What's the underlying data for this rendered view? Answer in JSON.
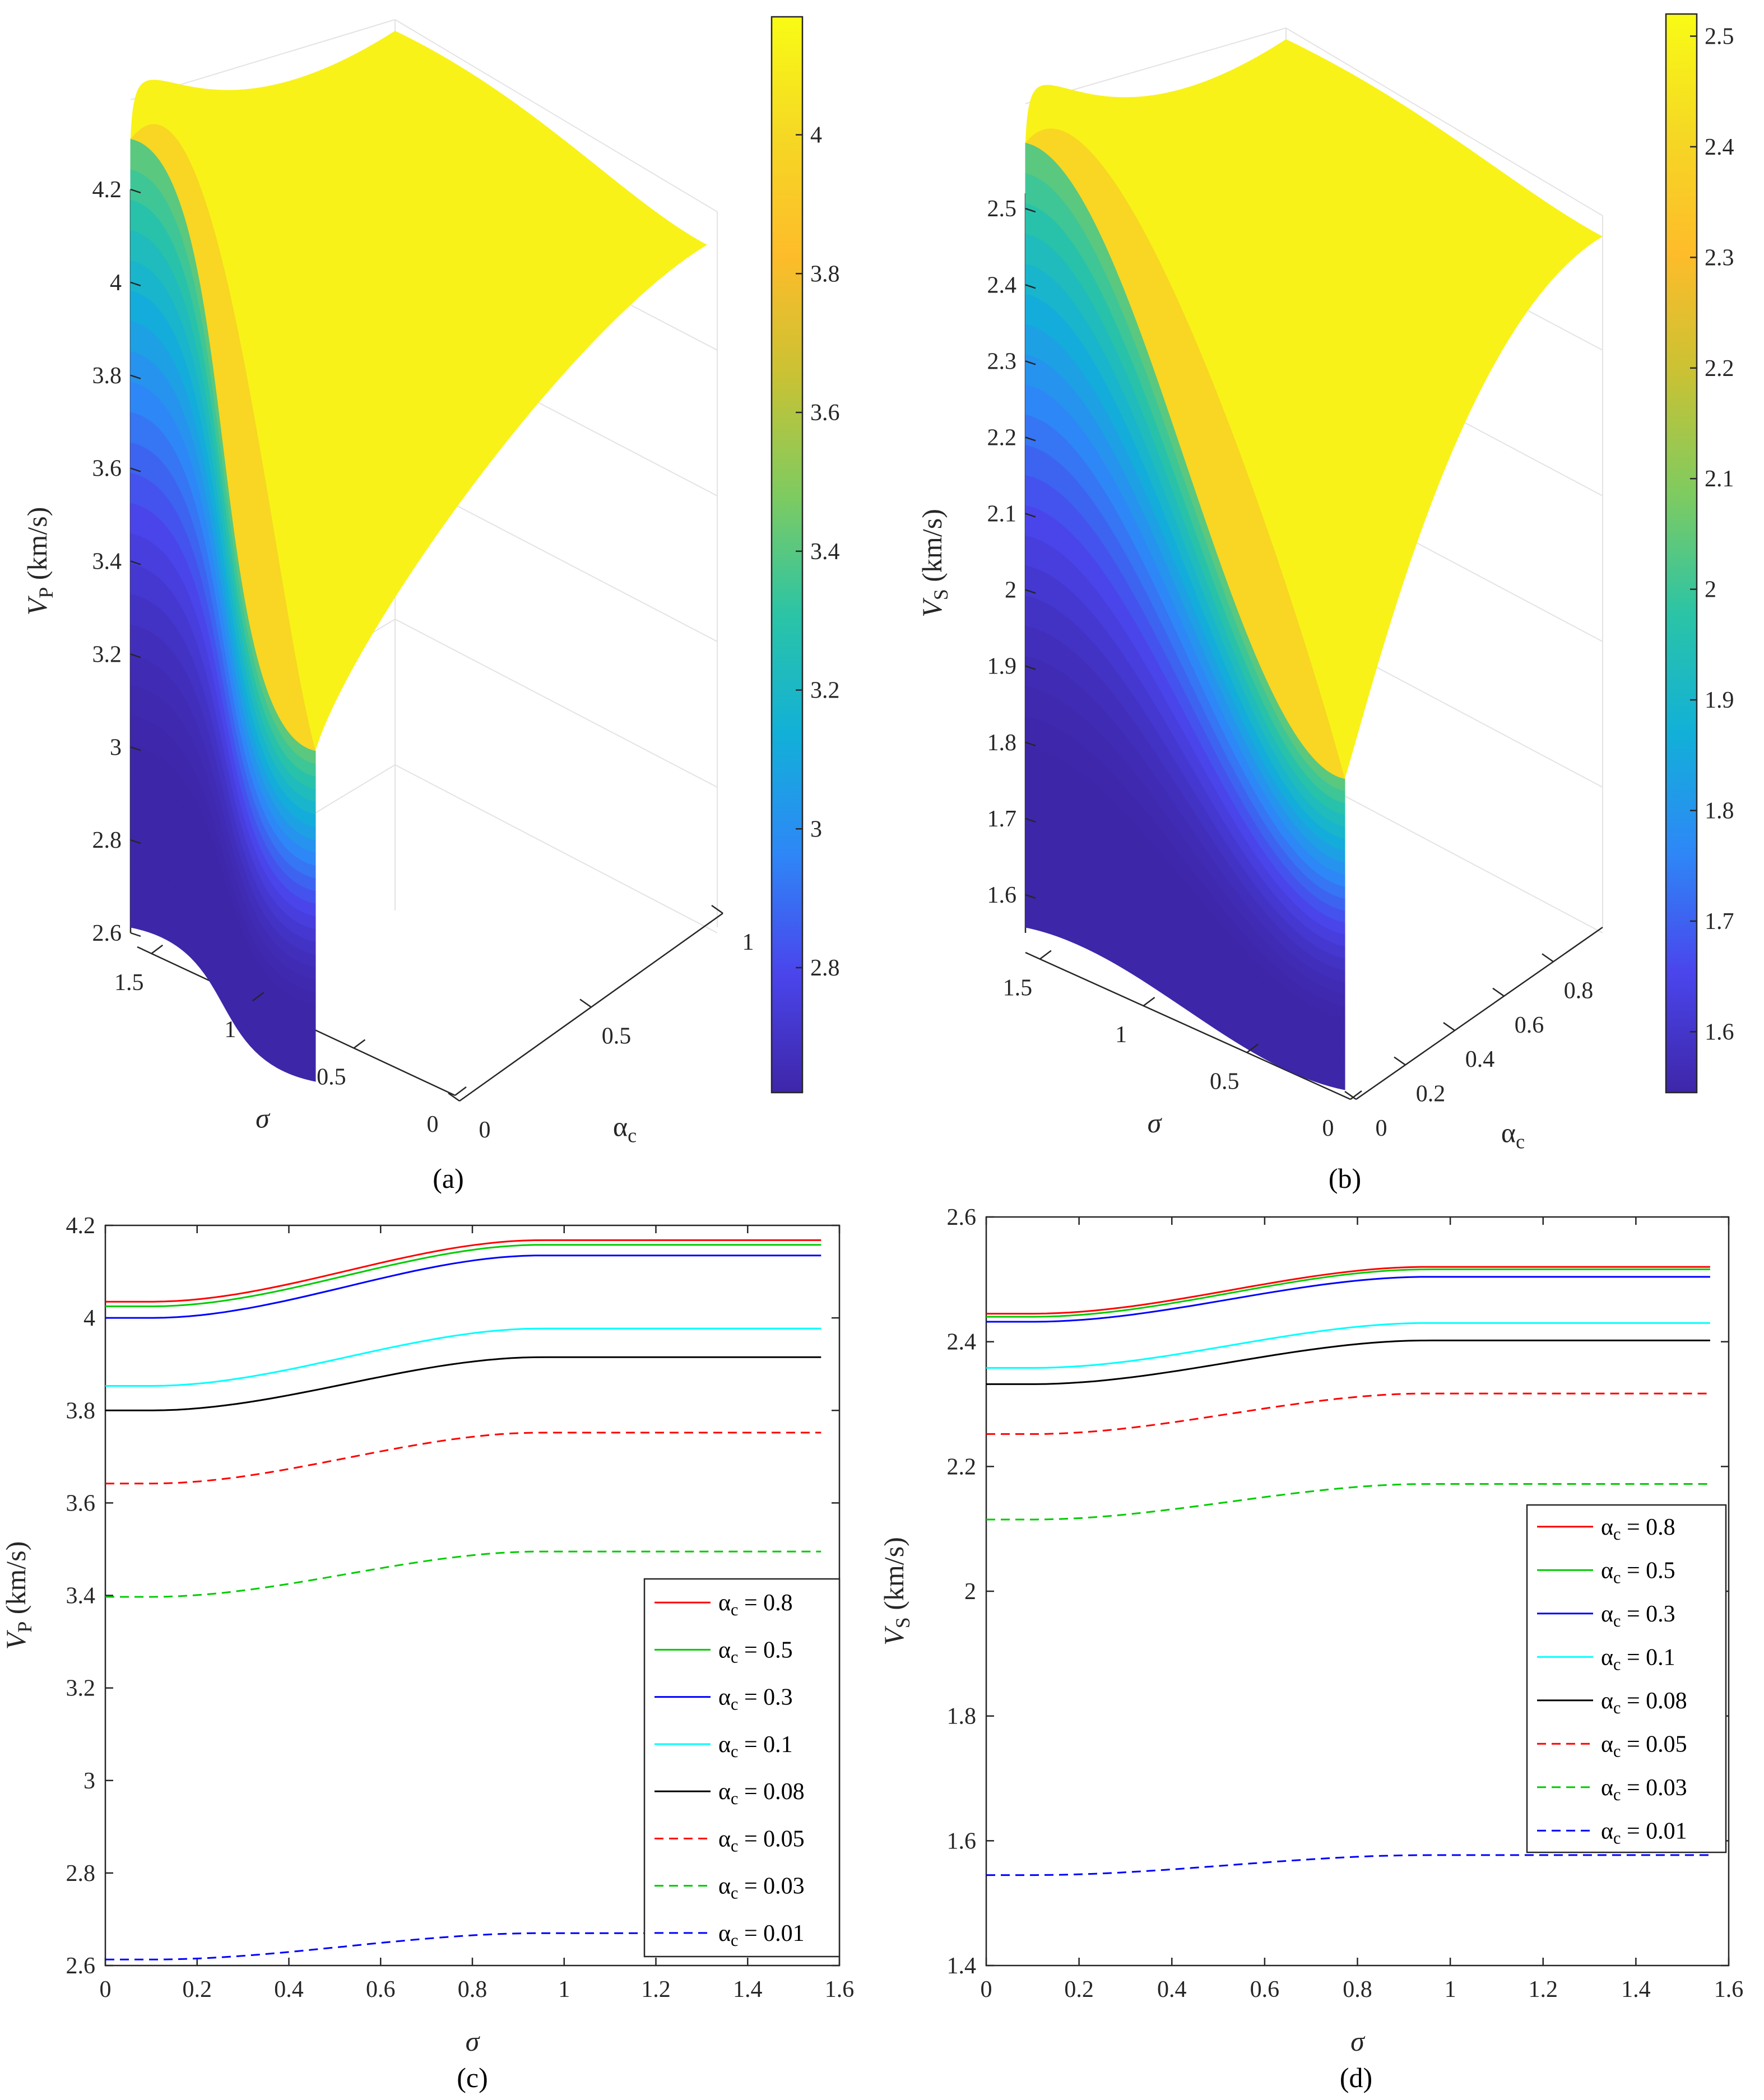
{
  "colormap": [
    "#3e26a8",
    "#4a45ec",
    "#2e87f7",
    "#12b0d8",
    "#2bc4a6",
    "#7fcb60",
    "#c9c234",
    "#febc2a",
    "#f5d824",
    "#f9fb15"
  ],
  "chart_data": [
    {
      "id": "a",
      "type": "surface",
      "caption": "(a)",
      "zlabel_base": "V",
      "zlabel_sub": "P",
      "zlabel_unit": " (km/s)",
      "xlabel": "σ",
      "ylabel_base": "α",
      "ylabel_sub": "c",
      "zlim": [
        2.6,
        4.2
      ],
      "zticks": [
        "2.6",
        "2.8",
        "3",
        "3.2",
        "3.4",
        "3.6",
        "3.8",
        "4",
        "4.2"
      ],
      "sigma_ticks": [
        "0",
        "0.5",
        "1",
        "1.5"
      ],
      "alpha_ticks": [
        "0",
        "0.5",
        "1"
      ],
      "colorbar": {
        "range": [
          2.62,
          4.17
        ],
        "ticks": [
          "2.8",
          "3",
          "3.2",
          "3.4",
          "3.6",
          "3.8",
          "4"
        ]
      },
      "corners": {
        "sigma0_alpha0": 2.61,
        "sigma1.57_alpha0": 2.67,
        "sigma0_alpha1": 4.04,
        "sigma1.57_alpha1": 4.17
      }
    },
    {
      "id": "b",
      "type": "surface",
      "caption": "(b)",
      "zlabel_base": "V",
      "zlabel_sub": "S",
      "zlabel_unit": " (km/s)",
      "xlabel": "σ",
      "ylabel_base": "α",
      "ylabel_sub": "c",
      "zlim": [
        1.55,
        2.52
      ],
      "zticks": [
        "1.6",
        "1.7",
        "1.8",
        "1.9",
        "2",
        "2.1",
        "2.2",
        "2.3",
        "2.4",
        "2.5"
      ],
      "sigma_ticks": [
        "0",
        "0.5",
        "1",
        "1.5"
      ],
      "alpha_ticks": [
        "0",
        "0.2",
        "0.4",
        "0.6",
        "0.8"
      ],
      "colorbar": {
        "range": [
          1.545,
          2.52
        ],
        "ticks": [
          "1.6",
          "1.7",
          "1.8",
          "1.9",
          "2",
          "2.1",
          "2.2",
          "2.3",
          "2.4",
          "2.5"
        ]
      },
      "corners": {
        "sigma0_alpha0": 1.545,
        "sigma1.57_alpha0": 1.575,
        "sigma0_alpha1": 2.445,
        "sigma1.57_alpha1": 2.52
      }
    },
    {
      "id": "c",
      "type": "line",
      "caption": "(c)",
      "xlabel": "σ",
      "ylabel_base": "V",
      "ylabel_sub": "P",
      "ylabel_unit": " (km/s)",
      "xlim": [
        0,
        1.6
      ],
      "ylim": [
        2.6,
        4.2
      ],
      "xticks": [
        "0",
        "0.2",
        "0.4",
        "0.6",
        "0.8",
        "1",
        "1.2",
        "1.4",
        "1.6"
      ],
      "yticks": [
        "2.6",
        "2.8",
        "3",
        "3.2",
        "3.4",
        "3.6",
        "3.8",
        "4",
        "4.2"
      ],
      "legend_position": "lower-right",
      "series": [
        {
          "name_base": "α",
          "name_sub": "c",
          "name_rest": " = 0.8",
          "color": "#ff0000",
          "dash": "solid",
          "start": 4.035,
          "end": 4.168
        },
        {
          "name_base": "α",
          "name_sub": "c",
          "name_rest": " = 0.5",
          "color": "#00cc00",
          "dash": "solid",
          "start": 4.025,
          "end": 4.158
        },
        {
          "name_base": "α",
          "name_sub": "c",
          "name_rest": " = 0.3",
          "color": "#0000ff",
          "dash": "solid",
          "start": 4.0,
          "end": 4.135
        },
        {
          "name_base": "α",
          "name_sub": "c",
          "name_rest": " = 0.1",
          "color": "#00ffff",
          "dash": "solid",
          "start": 3.853,
          "end": 3.977
        },
        {
          "name_base": "α",
          "name_sub": "c",
          "name_rest": " = 0.08",
          "color": "#000000",
          "dash": "solid",
          "start": 3.8,
          "end": 3.915
        },
        {
          "name_base": "α",
          "name_sub": "c",
          "name_rest": " = 0.05",
          "color": "#ff0000",
          "dash": "dashed",
          "start": 3.642,
          "end": 3.752
        },
        {
          "name_base": "α",
          "name_sub": "c",
          "name_rest": " = 0.03",
          "color": "#00cc00",
          "dash": "dashed",
          "start": 3.397,
          "end": 3.495
        },
        {
          "name_base": "α",
          "name_sub": "c",
          "name_rest": " = 0.01",
          "color": "#0000ff",
          "dash": "dashed",
          "start": 2.613,
          "end": 2.67
        }
      ]
    },
    {
      "id": "d",
      "type": "line",
      "caption": "(d)",
      "xlabel": "σ",
      "ylabel_base": "V",
      "ylabel_sub": "S",
      "ylabel_unit": " (km/s)",
      "xlim": [
        0,
        1.6
      ],
      "ylim": [
        1.4,
        2.6
      ],
      "xticks": [
        "0",
        "0.2",
        "0.4",
        "0.6",
        "0.8",
        "1",
        "1.2",
        "1.4",
        "1.6"
      ],
      "yticks": [
        "1.4",
        "1.6",
        "1.8",
        "2",
        "2.2",
        "2.4",
        "2.6"
      ],
      "legend_position": "right",
      "series": [
        {
          "name_base": "α",
          "name_sub": "c",
          "name_rest": " = 0.8",
          "color": "#ff0000",
          "dash": "solid",
          "start": 2.445,
          "end": 2.52
        },
        {
          "name_base": "α",
          "name_sub": "c",
          "name_rest": " = 0.5",
          "color": "#00cc00",
          "dash": "solid",
          "start": 2.44,
          "end": 2.516
        },
        {
          "name_base": "α",
          "name_sub": "c",
          "name_rest": " = 0.3",
          "color": "#0000ff",
          "dash": "solid",
          "start": 2.432,
          "end": 2.504
        },
        {
          "name_base": "α",
          "name_sub": "c",
          "name_rest": " = 0.1",
          "color": "#00ffff",
          "dash": "solid",
          "start": 2.358,
          "end": 2.43
        },
        {
          "name_base": "α",
          "name_sub": "c",
          "name_rest": " = 0.08",
          "color": "#000000",
          "dash": "solid",
          "start": 2.332,
          "end": 2.402
        },
        {
          "name_base": "α",
          "name_sub": "c",
          "name_rest": " = 0.05",
          "color": "#ff0000",
          "dash": "dashed",
          "start": 2.252,
          "end": 2.317
        },
        {
          "name_base": "α",
          "name_sub": "c",
          "name_rest": " = 0.03",
          "color": "#00cc00",
          "dash": "dashed",
          "start": 2.115,
          "end": 2.172
        },
        {
          "name_base": "α",
          "name_sub": "c",
          "name_rest": " = 0.01",
          "color": "#0000ff",
          "dash": "dashed",
          "start": 1.545,
          "end": 1.577
        }
      ]
    }
  ]
}
